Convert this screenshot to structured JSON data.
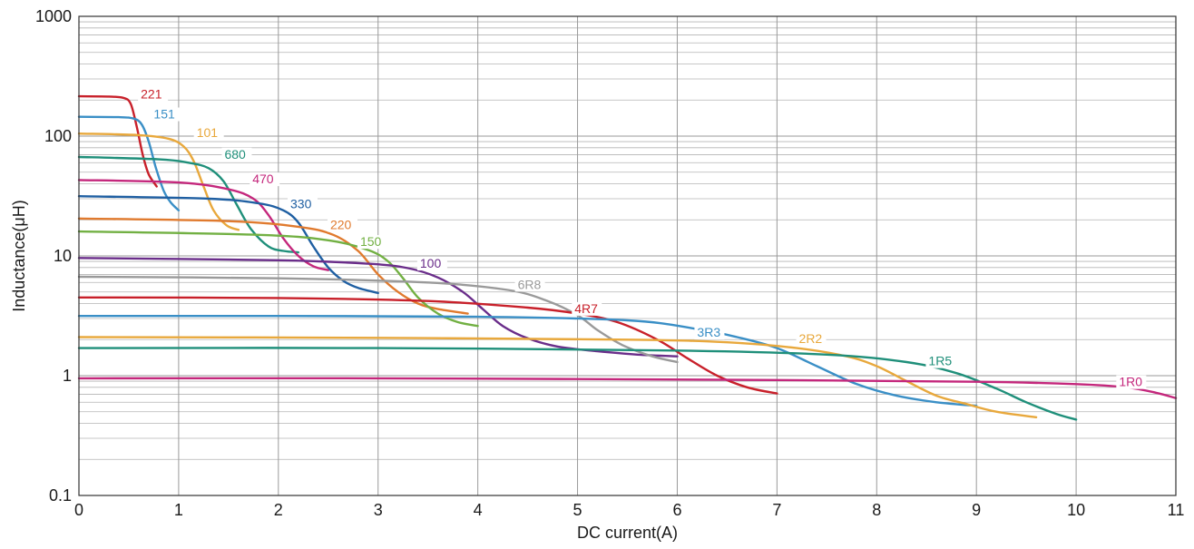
{
  "chart_data": {
    "type": "line",
    "xlabel": "DC current(A)",
    "ylabel": "Inductance(μH)",
    "xlim": [
      0,
      11
    ],
    "ylim": [
      0.1,
      1000
    ],
    "y_scale": "log",
    "grid": true,
    "x_ticks": [
      "0",
      "1",
      "2",
      "3",
      "4",
      "5",
      "6",
      "7",
      "8",
      "9",
      "10",
      "11"
    ],
    "y_ticks": [
      {
        "value": 0.1,
        "label": "0.1"
      },
      {
        "value": 1,
        "label": "1"
      },
      {
        "value": 10,
        "label": "10"
      },
      {
        "value": 100,
        "label": "100"
      },
      {
        "value": 1000,
        "label": "1000"
      }
    ],
    "series": [
      {
        "name": "221",
        "color": "#c8202a",
        "label_at": [
          0.62,
          210
        ],
        "points": [
          [
            0,
            215
          ],
          [
            0.3,
            214
          ],
          [
            0.45,
            208
          ],
          [
            0.52,
            185
          ],
          [
            0.58,
            120
          ],
          [
            0.64,
            70
          ],
          [
            0.7,
            48
          ],
          [
            0.78,
            38
          ]
        ]
      },
      {
        "name": "151",
        "color": "#3a8fc6",
        "label_at": [
          0.75,
          143
        ],
        "points": [
          [
            0,
            145
          ],
          [
            0.4,
            144
          ],
          [
            0.55,
            140
          ],
          [
            0.63,
            125
          ],
          [
            0.7,
            90
          ],
          [
            0.77,
            55
          ],
          [
            0.85,
            35
          ],
          [
            0.92,
            28
          ],
          [
            1.0,
            24
          ]
        ]
      },
      {
        "name": "101",
        "color": "#e8a83c",
        "label_at": [
          1.18,
          100
        ],
        "points": [
          [
            0,
            105
          ],
          [
            0.6,
            102
          ],
          [
            0.9,
            95
          ],
          [
            1.05,
            82
          ],
          [
            1.15,
            62
          ],
          [
            1.25,
            38
          ],
          [
            1.35,
            24
          ],
          [
            1.48,
            18
          ],
          [
            1.6,
            16.5
          ]
        ]
      },
      {
        "name": "680",
        "color": "#1f8f7a",
        "label_at": [
          1.46,
          66
        ],
        "points": [
          [
            0,
            67
          ],
          [
            0.8,
            64
          ],
          [
            1.1,
            60
          ],
          [
            1.3,
            54
          ],
          [
            1.45,
            42
          ],
          [
            1.58,
            27
          ],
          [
            1.72,
            17
          ],
          [
            1.9,
            12
          ],
          [
            2.05,
            11
          ],
          [
            2.2,
            10.7
          ]
        ]
      },
      {
        "name": "470",
        "color": "#c4277c",
        "label_at": [
          1.74,
          41
        ],
        "points": [
          [
            0,
            43
          ],
          [
            1.0,
            41
          ],
          [
            1.5,
            36
          ],
          [
            1.75,
            30
          ],
          [
            1.9,
            22
          ],
          [
            2.05,
            14
          ],
          [
            2.2,
            10
          ],
          [
            2.35,
            8.2
          ],
          [
            2.5,
            7.6
          ]
        ]
      },
      {
        "name": "330",
        "color": "#1f5fa2",
        "label_at": [
          2.12,
          25.5
        ],
        "points": [
          [
            0,
            31.5
          ],
          [
            1.3,
            30
          ],
          [
            1.8,
            27.5
          ],
          [
            2.05,
            24
          ],
          [
            2.2,
            19
          ],
          [
            2.35,
            12
          ],
          [
            2.5,
            8
          ],
          [
            2.65,
            6.2
          ],
          [
            2.8,
            5.4
          ],
          [
            3.0,
            4.9
          ]
        ]
      },
      {
        "name": "220",
        "color": "#e07a2e",
        "label_at": [
          2.52,
          17
        ],
        "points": [
          [
            0,
            20.5
          ],
          [
            1.5,
            19.5
          ],
          [
            2.2,
            17.5
          ],
          [
            2.55,
            15
          ],
          [
            2.8,
            11
          ],
          [
            3.0,
            7
          ],
          [
            3.2,
            5
          ],
          [
            3.4,
            4
          ],
          [
            3.6,
            3.6
          ],
          [
            3.9,
            3.3
          ]
        ]
      },
      {
        "name": "150",
        "color": "#72b043",
        "label_at": [
          2.82,
          12.3
        ],
        "points": [
          [
            0,
            16
          ],
          [
            1.8,
            15
          ],
          [
            2.5,
            13.5
          ],
          [
            2.9,
            11.2
          ],
          [
            3.1,
            9
          ],
          [
            3.25,
            6.5
          ],
          [
            3.4,
            4.5
          ],
          [
            3.6,
            3.3
          ],
          [
            3.8,
            2.8
          ],
          [
            4.0,
            2.6
          ]
        ]
      },
      {
        "name": "100",
        "color": "#6a2d8a",
        "label_at": [
          3.42,
          8.1
        ],
        "points": [
          [
            0,
            9.6
          ],
          [
            2.0,
            9.2
          ],
          [
            2.9,
            8.6
          ],
          [
            3.3,
            7.9
          ],
          [
            3.6,
            6.6
          ],
          [
            3.85,
            5
          ],
          [
            4.05,
            3.6
          ],
          [
            4.25,
            2.6
          ],
          [
            4.5,
            2.05
          ],
          [
            4.8,
            1.75
          ],
          [
            5.2,
            1.6
          ],
          [
            5.6,
            1.5
          ],
          [
            6.0,
            1.45
          ]
        ]
      },
      {
        "name": "6R8",
        "color": "#9a9a9a",
        "label_at": [
          4.4,
          5.4
        ],
        "points": [
          [
            0,
            6.7
          ],
          [
            2.0,
            6.5
          ],
          [
            3.5,
            6.0
          ],
          [
            4.3,
            5.2
          ],
          [
            4.7,
            4.2
          ],
          [
            5.0,
            3.2
          ],
          [
            5.2,
            2.4
          ],
          [
            5.45,
            1.8
          ],
          [
            5.75,
            1.45
          ],
          [
            6.0,
            1.3
          ]
        ]
      },
      {
        "name": "4R7",
        "color": "#c8202a",
        "label_at": [
          4.97,
          3.4
        ],
        "points": [
          [
            0,
            4.5
          ],
          [
            2.0,
            4.45
          ],
          [
            3.5,
            4.2
          ],
          [
            4.5,
            3.7
          ],
          [
            5.0,
            3.3
          ],
          [
            5.4,
            2.8
          ],
          [
            5.8,
            2.0
          ],
          [
            6.1,
            1.4
          ],
          [
            6.4,
            1.0
          ],
          [
            6.7,
            0.8
          ],
          [
            7.0,
            0.71
          ]
        ]
      },
      {
        "name": "3R3",
        "color": "#3a8fc6",
        "label_at": [
          6.2,
          2.15
        ],
        "points": [
          [
            0,
            3.15
          ],
          [
            2.0,
            3.15
          ],
          [
            4.0,
            3.1
          ],
          [
            5.5,
            2.9
          ],
          [
            6.2,
            2.45
          ],
          [
            6.6,
            2.1
          ],
          [
            7.0,
            1.7
          ],
          [
            7.4,
            1.2
          ],
          [
            7.8,
            0.85
          ],
          [
            8.2,
            0.68
          ],
          [
            8.6,
            0.6
          ],
          [
            9.0,
            0.56
          ]
        ]
      },
      {
        "name": "2R2",
        "color": "#e8a83c",
        "label_at": [
          7.22,
          1.9
        ],
        "points": [
          [
            0,
            2.1
          ],
          [
            3.0,
            2.07
          ],
          [
            5.5,
            2.0
          ],
          [
            6.5,
            1.9
          ],
          [
            7.2,
            1.7
          ],
          [
            7.7,
            1.45
          ],
          [
            8.0,
            1.2
          ],
          [
            8.3,
            0.9
          ],
          [
            8.6,
            0.68
          ],
          [
            8.9,
            0.58
          ],
          [
            9.2,
            0.5
          ],
          [
            9.6,
            0.45
          ]
        ]
      },
      {
        "name": "1R5",
        "color": "#1f8f7a",
        "label_at": [
          8.52,
          1.24
        ],
        "points": [
          [
            0,
            1.7
          ],
          [
            3.0,
            1.7
          ],
          [
            6.0,
            1.62
          ],
          [
            7.5,
            1.5
          ],
          [
            8.3,
            1.3
          ],
          [
            8.8,
            1.05
          ],
          [
            9.2,
            0.78
          ],
          [
            9.5,
            0.6
          ],
          [
            9.8,
            0.48
          ],
          [
            10.0,
            0.43
          ]
        ]
      },
      {
        "name": "1R0",
        "color": "#c4277c",
        "label_at": [
          10.43,
          0.83
        ],
        "points": [
          [
            0,
            0.95
          ],
          [
            3.0,
            0.95
          ],
          [
            7.0,
            0.92
          ],
          [
            9.0,
            0.89
          ],
          [
            10.0,
            0.85
          ],
          [
            10.5,
            0.8
          ],
          [
            10.8,
            0.72
          ],
          [
            11.0,
            0.65
          ]
        ]
      }
    ]
  }
}
